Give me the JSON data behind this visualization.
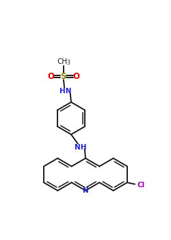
{
  "bg_color": "#ffffff",
  "bond_color": "#1a1a1a",
  "n_color": "#2222cc",
  "o_color": "#dd0000",
  "cl_color": "#9900aa",
  "s_color": "#888800",
  "figsize": [
    2.5,
    3.5
  ],
  "dpi": 100,
  "xlim": [
    0,
    10
  ],
  "ylim": [
    0,
    14
  ]
}
